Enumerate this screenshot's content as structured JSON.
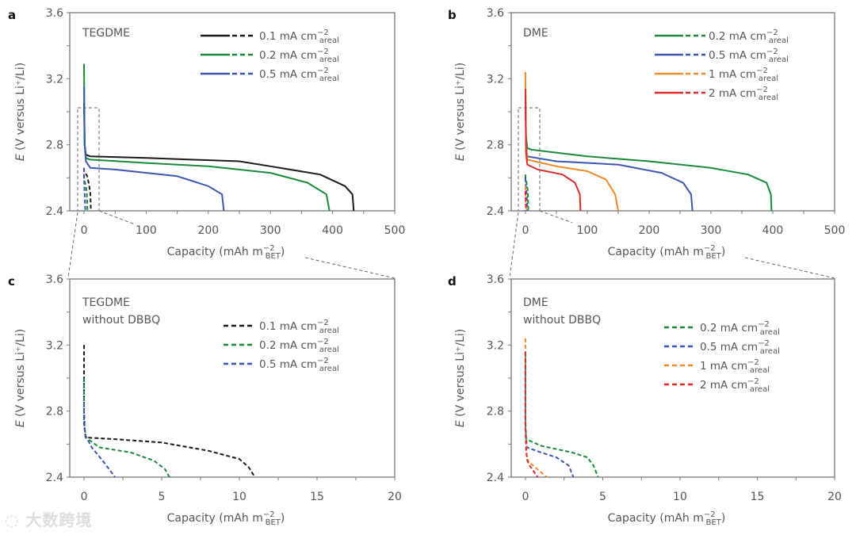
{
  "watermark": "大数跨境",
  "chart_data": [
    {
      "panel": "a",
      "type": "line",
      "title_lines": [
        "TEGDME"
      ],
      "xlabel": {
        "text": "Capacity (mAh m",
        "sup": "−2",
        "sub": "BET",
        "close": ")"
      },
      "ylabel": {
        "var": "E",
        "rest": " (V versus Li⁺/Li)"
      },
      "xlim": [
        -23,
        500
      ],
      "ylim": [
        2.4,
        3.6
      ],
      "xticks": [
        0,
        100,
        200,
        300,
        400,
        500
      ],
      "xminor": 50,
      "yticks": [
        2.4,
        2.8,
        3.2,
        3.6
      ],
      "yminor": 0.2,
      "legend": [
        {
          "text": "0.1 mA cm",
          "sup": "−2",
          "sub": "areal",
          "color": "#1a1a1a",
          "styles": [
            "solid",
            "dashed"
          ]
        },
        {
          "text": "0.2 mA cm",
          "sup": "−2",
          "sub": "areal",
          "color": "#1a8a3a",
          "styles": [
            "solid",
            "dashed"
          ]
        },
        {
          "text": "0.5 mA cm",
          "sup": "−2",
          "sub": "areal",
          "color": "#3a56b0",
          "styles": [
            "solid",
            "dashed"
          ]
        }
      ],
      "series": [
        {
          "name": "0.1 mA (with DBBQ)",
          "color": "#1a1a1a",
          "style": "solid",
          "x": [
            0,
            1,
            3,
            10,
            100,
            250,
            300,
            380,
            420,
            432,
            434
          ],
          "y": [
            3.05,
            2.8,
            2.74,
            2.73,
            2.72,
            2.7,
            2.67,
            2.62,
            2.55,
            2.5,
            2.4
          ]
        },
        {
          "name": "0.2 mA (with DBBQ)",
          "color": "#1a8a3a",
          "style": "solid",
          "x": [
            0,
            1,
            3,
            10,
            100,
            200,
            300,
            360,
            390,
            395
          ],
          "y": [
            3.29,
            2.8,
            2.72,
            2.71,
            2.69,
            2.67,
            2.63,
            2.57,
            2.5,
            2.4
          ]
        },
        {
          "name": "0.5 mA (with DBBQ)",
          "color": "#3a56b0",
          "style": "solid",
          "x": [
            0,
            1,
            3,
            10,
            50,
            150,
            200,
            222,
            225
          ],
          "y": [
            3.15,
            2.8,
            2.7,
            2.66,
            2.65,
            2.61,
            2.55,
            2.5,
            2.4
          ]
        },
        {
          "name": "0.1 mA (without DBBQ)",
          "color": "#1a1a1a",
          "style": "dashed",
          "x": [
            0,
            0.1,
            2,
            5,
            8,
            10,
            11
          ],
          "y": [
            2.66,
            2.64,
            2.63,
            2.61,
            2.56,
            2.51,
            2.4
          ]
        },
        {
          "name": "0.2 mA (without DBBQ)",
          "color": "#1a8a3a",
          "style": "dashed",
          "x": [
            0,
            0.1,
            1,
            3,
            4.5,
            5.5
          ],
          "y": [
            2.62,
            2.6,
            2.58,
            2.55,
            2.5,
            2.4
          ]
        },
        {
          "name": "0.5 mA (without DBBQ)",
          "color": "#3a56b0",
          "style": "dashed",
          "x": [
            0,
            0.1,
            0.5,
            1.2,
            2
          ],
          "y": [
            2.66,
            2.6,
            2.55,
            2.48,
            2.4
          ]
        }
      ]
    },
    {
      "panel": "b",
      "type": "line",
      "title_lines": [
        "DME"
      ],
      "xlabel": {
        "text": "Capacity (mAh m",
        "sup": "−2",
        "sub": "BET",
        "close": ")"
      },
      "ylabel": {
        "var": "E",
        "rest": " (V versus Li⁺/Li)"
      },
      "xlim": [
        -23,
        500
      ],
      "ylim": [
        2.4,
        3.6
      ],
      "xticks": [
        0,
        100,
        200,
        300,
        400,
        500
      ],
      "xminor": 50,
      "yticks": [
        2.4,
        2.8,
        3.2,
        3.6
      ],
      "yminor": 0.2,
      "legend": [
        {
          "text": "0.2 mA cm",
          "sup": "−2",
          "sub": "areal",
          "color": "#1a8a3a",
          "styles": [
            "solid",
            "dashed"
          ]
        },
        {
          "text": "0.5 mA cm",
          "sup": "−2",
          "sub": "areal",
          "color": "#3a56b0",
          "styles": [
            "solid",
            "dashed"
          ]
        },
        {
          "text": "1 mA cm",
          "sup": "−2",
          "sub": "areal",
          "color": "#f08a24",
          "styles": [
            "solid",
            "dashed"
          ]
        },
        {
          "text": "2 mA cm",
          "sup": "−2",
          "sub": "areal",
          "color": "#e02a2a",
          "styles": [
            "solid",
            "dashed"
          ]
        }
      ],
      "series": [
        {
          "name": "0.2 mA (with DBBQ)",
          "color": "#1a8a3a",
          "style": "solid",
          "x": [
            0,
            1,
            3,
            10,
            100,
            200,
            300,
            360,
            390,
            397,
            398
          ],
          "y": [
            3.2,
            2.85,
            2.78,
            2.77,
            2.73,
            2.7,
            2.66,
            2.62,
            2.57,
            2.5,
            2.4
          ]
        },
        {
          "name": "0.5 mA (with DBBQ)",
          "color": "#3a56b0",
          "style": "solid",
          "x": [
            0,
            1,
            3,
            50,
            150,
            220,
            255,
            268,
            270
          ],
          "y": [
            3.1,
            2.8,
            2.73,
            2.7,
            2.68,
            2.63,
            2.57,
            2.5,
            2.4
          ]
        },
        {
          "name": "1 mA (with DBBQ)",
          "color": "#f08a24",
          "style": "solid",
          "x": [
            0,
            1,
            3,
            50,
            100,
            130,
            145,
            150
          ],
          "y": [
            3.24,
            2.8,
            2.71,
            2.67,
            2.64,
            2.59,
            2.5,
            2.4
          ]
        },
        {
          "name": "2 mA (with DBBQ)",
          "color": "#e02a2a",
          "style": "solid",
          "x": [
            0,
            1,
            3,
            20,
            60,
            80,
            88,
            89
          ],
          "y": [
            3.14,
            2.75,
            2.68,
            2.65,
            2.62,
            2.57,
            2.5,
            2.4
          ]
        },
        {
          "name": "0.2 mA (without DBBQ)",
          "color": "#1a8a3a",
          "style": "dashed",
          "x": [
            0,
            0.05,
            1,
            3,
            4,
            4.7
          ],
          "y": [
            2.62,
            2.6,
            2.58,
            2.55,
            2.5,
            2.4
          ]
        },
        {
          "name": "0.5 mA (without DBBQ)",
          "color": "#3a56b0",
          "style": "dashed",
          "x": [
            0,
            0.1,
            1,
            2,
            3.1
          ],
          "y": [
            2.6,
            2.57,
            2.55,
            2.5,
            2.4
          ]
        },
        {
          "name": "1 mA (without DBBQ)",
          "color": "#f08a24",
          "style": "dashed",
          "x": [
            0,
            0.5,
            1.4
          ],
          "y": [
            2.55,
            2.47,
            2.4
          ]
        },
        {
          "name": "2 mA (without DBBQ)",
          "color": "#e02a2a",
          "style": "dashed",
          "x": [
            0,
            0.5,
            0.8
          ],
          "y": [
            2.52,
            2.44,
            2.4
          ]
        }
      ]
    },
    {
      "panel": "c",
      "type": "line",
      "title_lines": [
        "TEGDME",
        "without DBBQ"
      ],
      "xlabel": {
        "text": "Capacity (mAh m",
        "sup": "−2",
        "sub": "BET",
        "close": ")"
      },
      "ylabel": {
        "var": "E",
        "rest": " (V versus Li⁺/Li)"
      },
      "xlim": [
        -0.92,
        20
      ],
      "ylim": [
        2.4,
        3.6
      ],
      "xticks": [
        0,
        5,
        10,
        15,
        20
      ],
      "xminor": 2.5,
      "yticks": [
        2.4,
        2.8,
        3.2,
        3.6
      ],
      "yminor": 0.2,
      "legend": [
        {
          "text": "0.1 mA cm",
          "sup": "−2",
          "sub": "areal",
          "color": "#1a1a1a",
          "styles": [
            "dashed"
          ]
        },
        {
          "text": "0.2 mA cm",
          "sup": "−2",
          "sub": "areal",
          "color": "#1a8a3a",
          "styles": [
            "dashed"
          ]
        },
        {
          "text": "0.5 mA cm",
          "sup": "−2",
          "sub": "areal",
          "color": "#3a56b0",
          "styles": [
            "dashed"
          ]
        }
      ],
      "series": [
        {
          "name": "0.1 mA",
          "color": "#1a1a1a",
          "style": "dashed",
          "x": [
            0,
            0,
            0.05,
            0.1,
            2,
            5,
            8,
            10,
            10.6,
            11
          ],
          "y": [
            3.2,
            2.8,
            2.68,
            2.64,
            2.63,
            2.61,
            2.56,
            2.51,
            2.46,
            2.4
          ]
        },
        {
          "name": "0.2 mA",
          "color": "#1a8a3a",
          "style": "dashed",
          "x": [
            0,
            0,
            0.1,
            1,
            3,
            4.5,
            5.2,
            5.5
          ],
          "y": [
            3.0,
            2.75,
            2.64,
            2.58,
            2.55,
            2.5,
            2.45,
            2.4
          ]
        },
        {
          "name": "0.5 mA",
          "color": "#3a56b0",
          "style": "dashed",
          "x": [
            0,
            0,
            0.1,
            0.5,
            1.2,
            2
          ],
          "y": [
            2.85,
            2.72,
            2.65,
            2.58,
            2.5,
            2.4
          ]
        }
      ]
    },
    {
      "panel": "d",
      "type": "line",
      "title_lines": [
        "DME",
        "without DBBQ"
      ],
      "xlabel": {
        "text": "Capacity (mAh m",
        "sup": "−2",
        "sub": "BET",
        "close": ")"
      },
      "ylabel": {
        "var": "E",
        "rest": " (V versus Li⁺/Li)"
      },
      "xlim": [
        -0.92,
        20
      ],
      "ylim": [
        2.4,
        3.6
      ],
      "xticks": [
        0,
        5,
        10,
        15,
        20
      ],
      "xminor": 2.5,
      "yticks": [
        2.4,
        2.8,
        3.2,
        3.6
      ],
      "yminor": 0.2,
      "legend": [
        {
          "text": "0.2 mA cm",
          "sup": "−2",
          "sub": "areal",
          "color": "#1a8a3a",
          "styles": [
            "dashed"
          ]
        },
        {
          "text": "0.5 mA cm",
          "sup": "−2",
          "sub": "areal",
          "color": "#3a56b0",
          "styles": [
            "dashed"
          ]
        },
        {
          "text": "1 mA cm",
          "sup": "−2",
          "sub": "areal",
          "color": "#f08a24",
          "styles": [
            "dashed"
          ]
        },
        {
          "text": "2 mA cm",
          "sup": "−2",
          "sub": "areal",
          "color": "#e02a2a",
          "styles": [
            "dashed"
          ]
        }
      ],
      "series": [
        {
          "name": "0.2 mA",
          "color": "#1a8a3a",
          "style": "dashed",
          "x": [
            0,
            0,
            0.05,
            1,
            3,
            4,
            4.4,
            4.7
          ],
          "y": [
            3.15,
            2.75,
            2.63,
            2.59,
            2.55,
            2.52,
            2.47,
            2.4
          ]
        },
        {
          "name": "0.5 mA",
          "color": "#3a56b0",
          "style": "dashed",
          "x": [
            0,
            0,
            0.1,
            1,
            2,
            2.8,
            3.1
          ],
          "y": [
            3.05,
            2.7,
            2.58,
            2.55,
            2.52,
            2.47,
            2.4
          ]
        },
        {
          "name": "1 mA",
          "color": "#f08a24",
          "style": "dashed",
          "x": [
            0,
            0,
            0.1,
            0.5,
            1.0,
            1.4
          ],
          "y": [
            3.24,
            2.7,
            2.5,
            2.47,
            2.43,
            2.4
          ]
        },
        {
          "name": "2 mA",
          "color": "#e02a2a",
          "style": "dashed",
          "x": [
            0,
            0,
            0.05,
            0.2,
            0.5,
            0.8
          ],
          "y": [
            3.16,
            2.7,
            2.55,
            2.48,
            2.44,
            2.4
          ]
        }
      ]
    }
  ]
}
